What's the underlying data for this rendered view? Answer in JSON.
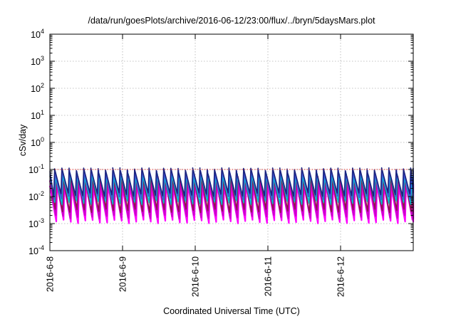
{
  "chart_data": {
    "type": "line",
    "title": "/data/run/goesPlots/archive/2016-06-12/23:00/flux/../bryn/5daysMars.plot",
    "xlabel": "Coordinated Universal Time (UTC)",
    "ylabel": "cSv/day",
    "yscale": "log",
    "ylim": [
      0.0001,
      10000
    ],
    "xlim": [
      "2016-06-08",
      "2016-06-13"
    ],
    "x_ticks": [
      "2016-6-8",
      "2016-6-9",
      "2016-6-10",
      "2016-6-11",
      "2016-6-12"
    ],
    "y_ticks": [
      {
        "base": "10",
        "exp": "-4"
      },
      {
        "base": "10",
        "exp": "-3"
      },
      {
        "base": "10",
        "exp": "-2"
      },
      {
        "base": "10",
        "exp": "-1"
      },
      {
        "base": "10",
        "exp": "0"
      },
      {
        "base": "10",
        "exp": "1"
      },
      {
        "base": "10",
        "exp": "2"
      },
      {
        "base": "10",
        "exp": "3"
      },
      {
        "base": "10",
        "exp": "4"
      }
    ],
    "grid": true,
    "sawtooth_cycles_per_day": 10,
    "series": [
      {
        "color": "#ff00ff",
        "peak": 0.025,
        "trough": 0.0012
      },
      {
        "color": "#cc00cc",
        "peak": 0.035,
        "trough": 0.0018
      },
      {
        "color": "#8b1a4a",
        "peak": 0.05,
        "trough": 0.003
      },
      {
        "color": "#00bcd4",
        "peak": 0.06,
        "trough": 0.006
      },
      {
        "color": "#3f51d8",
        "peak": 0.08,
        "trough": 0.009
      },
      {
        "color": "#1a237e",
        "peak": 0.1,
        "trough": 0.012
      }
    ],
    "reference_line": {
      "value": 0.1,
      "color": "#e53935"
    }
  }
}
